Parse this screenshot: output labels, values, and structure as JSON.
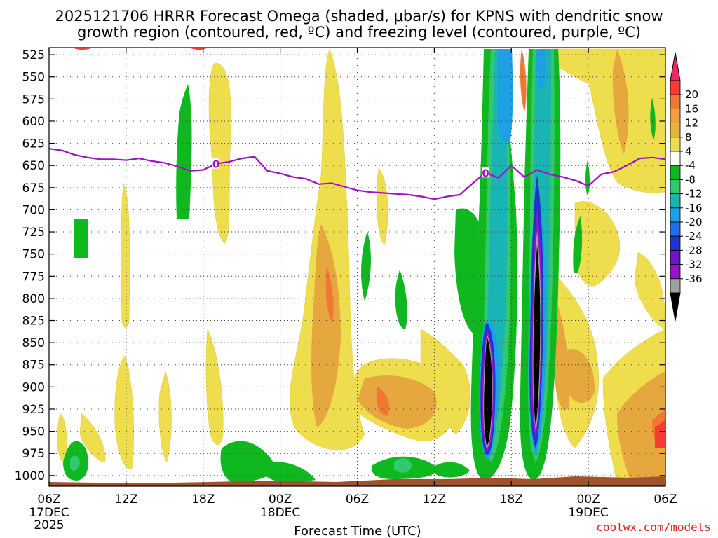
{
  "chart_data": {
    "type": "heatmap",
    "title_line1": "2025121706 HRRR Forecast Omega (shaded, μbar/s) for KPNS with dendritic snow",
    "title_line2": "growth region (contoured, red, ºC) and freezing level (contoured, purple, ºC)",
    "xlabel": "Forecast Time (UTC)",
    "credit": "coolwx.com/models",
    "x_ticks": [
      "06Z",
      "12Z",
      "18Z",
      "00Z",
      "06Z",
      "12Z",
      "18Z",
      "00Z",
      "06Z"
    ],
    "x_date_labels": [
      {
        "tick_index": 0,
        "text": "17DEC"
      },
      {
        "tick_index": 3,
        "text": "18DEC"
      },
      {
        "tick_index": 7,
        "text": "19DEC"
      }
    ],
    "x_year_label": "2025",
    "x_range_hours": [
      0,
      48
    ],
    "y_ticks": [
      525,
      550,
      575,
      600,
      625,
      650,
      675,
      700,
      725,
      750,
      775,
      800,
      825,
      850,
      875,
      900,
      925,
      950,
      975,
      1000
    ],
    "y_range_hPa": [
      517,
      1012
    ],
    "colorbar_labels": [
      "20",
      "16",
      "12",
      "8",
      "4",
      "-4",
      "-8",
      "-12",
      "-16",
      "-20",
      "-24",
      "-28",
      "-32",
      "-36"
    ],
    "colorbar_colors": [
      "#ec2a62",
      "#f83c34",
      "#f07832",
      "#f0a03c",
      "#e6b43c",
      "#eede4e",
      "#ffffff",
      "#0fb81e",
      "#32c870",
      "#19b4b4",
      "#1ea0e6",
      "#1e6ef0",
      "#2032d2",
      "#6e14c8",
      "#9614c8",
      "#a0a0a0",
      "#000000"
    ],
    "freezing_level": {
      "label": "0",
      "color": "#a010c8",
      "hours": [
        0,
        1,
        2,
        3,
        4,
        5,
        6,
        7,
        8,
        9,
        10,
        11,
        12,
        13,
        14,
        15,
        16,
        17,
        18,
        19,
        20,
        21,
        22,
        23,
        24,
        25,
        26,
        27,
        28,
        29,
        30,
        31,
        32,
        33,
        34,
        35,
        36,
        37,
        38,
        39,
        40,
        41,
        42,
        43,
        44,
        45,
        46,
        47,
        48
      ],
      "pressure": [
        631,
        633,
        638,
        641,
        643,
        643,
        644,
        642,
        645,
        647,
        651,
        656,
        655,
        648,
        646,
        642,
        640,
        656,
        659,
        663,
        665,
        671,
        670,
        674,
        678,
        680,
        681,
        682,
        683,
        685,
        688,
        685,
        683,
        670,
        658,
        664,
        650,
        663,
        655,
        660,
        663,
        667,
        673,
        660,
        657,
        650,
        642,
        641,
        643
      ]
    },
    "legend": {
      "colorbar_position": "right"
    }
  }
}
